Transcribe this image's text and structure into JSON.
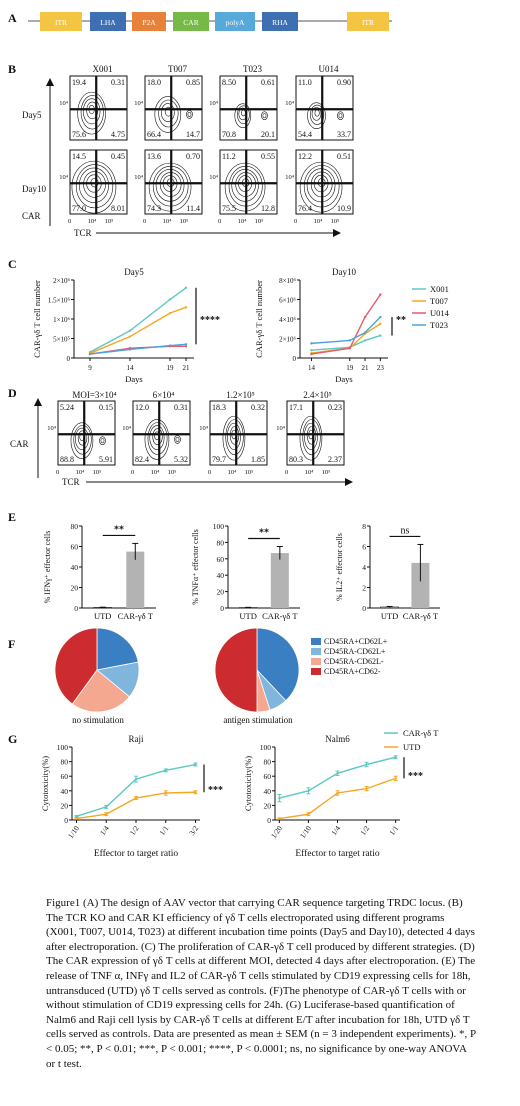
{
  "panels": {
    "A": "A",
    "B": "B",
    "C": "C",
    "D": "D",
    "E": "E",
    "F": "F",
    "G": "G"
  },
  "vector": {
    "segments": [
      {
        "label": "ITR",
        "color": "#f4c542"
      },
      {
        "label": "LHA",
        "color": "#3f6fb3"
      },
      {
        "label": "P2A",
        "color": "#e8823a"
      },
      {
        "label": "CAR",
        "color": "#76b947"
      },
      {
        "label": "polyA",
        "color": "#57a9d9"
      },
      {
        "label": "RHA",
        "color": "#3f6fb3"
      },
      {
        "label": "ITR",
        "color": "#f4c542"
      }
    ]
  },
  "panelB": {
    "columns": [
      "X001",
      "T007",
      "T023",
      "U014"
    ],
    "rows": [
      {
        "label": "Day5",
        "quadrants": [
          [
            "19.4",
            "0.31",
            "75.6",
            "4.75"
          ],
          [
            "18.0",
            "0.85",
            "66.4",
            "14.7"
          ],
          [
            "8.50",
            "0.61",
            "70.8",
            "20.1"
          ],
          [
            "11.0",
            "0.90",
            "54.4",
            "33.7"
          ]
        ]
      },
      {
        "label": "Day10",
        "quadrants": [
          [
            "14.5",
            "0.45",
            "77.0",
            "8.01"
          ],
          [
            "13.6",
            "0.70",
            "74.3",
            "11.4"
          ],
          [
            "11.2",
            "0.55",
            "75.5",
            "12.8"
          ],
          [
            "12.2",
            "0.51",
            "76.4",
            "10.9"
          ]
        ]
      }
    ],
    "y_tick": "10⁴",
    "x_ticks": [
      "0",
      "10⁴",
      "10⁵"
    ],
    "y_axis": "CAR",
    "x_axis": "TCR"
  },
  "chart_data": [
    {
      "type": "line",
      "title": "Day5",
      "ylabel": "CAR-γδ T cell number",
      "xlabel": "Days",
      "x": [
        9,
        14,
        19,
        21
      ],
      "ylim": [
        0,
        2000000
      ],
      "yticks": [
        "0",
        "5×10⁵",
        "1×10⁶",
        "1.5×10⁶",
        "2×10⁶"
      ],
      "significance": "****",
      "series": [
        {
          "name": "X001",
          "color": "#5ec7c2",
          "values": [
            150000,
            700000,
            1500000,
            1800000
          ]
        },
        {
          "name": "T007",
          "color": "#f5a623",
          "values": [
            120000,
            550000,
            1150000,
            1300000
          ]
        },
        {
          "name": "U014",
          "color": "#e8596d",
          "values": [
            100000,
            250000,
            300000,
            300000
          ]
        },
        {
          "name": "T023",
          "color": "#4aa3df",
          "values": [
            100000,
            220000,
            320000,
            350000
          ]
        }
      ]
    },
    {
      "type": "line",
      "title": "Day10",
      "ylabel": "CAR-γδ T cell number",
      "xlabel": "Days",
      "x": [
        14,
        19,
        21,
        23
      ],
      "ylim": [
        0,
        8000000
      ],
      "yticks": [
        "0",
        "2×10⁶",
        "4×10⁶",
        "6×10⁶",
        "8×10⁶"
      ],
      "significance": "**",
      "legend": [
        "X001",
        "T007",
        "U014",
        "T023"
      ],
      "series": [
        {
          "name": "X001",
          "color": "#5ec7c2",
          "values": [
            800000,
            1100000,
            1800000,
            2300000
          ]
        },
        {
          "name": "T007",
          "color": "#f5a623",
          "values": [
            500000,
            1000000,
            2500000,
            3500000
          ]
        },
        {
          "name": "U014",
          "color": "#e8596d",
          "values": [
            400000,
            1000000,
            4200000,
            6500000
          ]
        },
        {
          "name": "T023",
          "color": "#4aa3df",
          "values": [
            1500000,
            1800000,
            2600000,
            4200000
          ]
        }
      ]
    },
    {
      "type": "bar",
      "ylabel": "% IFNγ⁺ effector cells",
      "categories": [
        "UTD",
        "CAR-γδ T"
      ],
      "values": [
        0.5,
        55
      ],
      "errors": [
        0.3,
        8
      ],
      "ylim": [
        0,
        80
      ],
      "yticks": [
        "0",
        "20",
        "40",
        "60",
        "80"
      ],
      "significance": "**"
    },
    {
      "type": "bar",
      "ylabel": "% TNFα⁺ effector cells",
      "categories": [
        "UTD",
        "CAR-γδ T"
      ],
      "values": [
        0.5,
        67
      ],
      "errors": [
        0.3,
        8
      ],
      "ylim": [
        0,
        100
      ],
      "yticks": [
        "0",
        "20",
        "40",
        "60",
        "80",
        "100"
      ],
      "significance": "**"
    },
    {
      "type": "bar",
      "ylabel": "% IL2⁺ effector cells",
      "categories": [
        "UTD",
        "CAR-γδ T"
      ],
      "values": [
        0.1,
        4.4
      ],
      "errors": [
        0.05,
        1.8
      ],
      "ylim": [
        0,
        8
      ],
      "yticks": [
        "0",
        "2",
        "4",
        "6",
        "8"
      ],
      "significance": "ns"
    },
    {
      "type": "pie",
      "label": "no stimulation",
      "categories": [
        "CD45RA+CD62L+",
        "CD45RA-CD62L+",
        "CD45RA-CD62L-",
        "CD45RA+CD62-"
      ],
      "values": [
        22,
        14,
        24,
        40
      ],
      "colors": [
        "#3a7fc1",
        "#80b6dd",
        "#f4a890",
        "#cc2c2f"
      ]
    },
    {
      "type": "pie",
      "label": "antigen stimulation",
      "categories": [
        "CD45RA+CD62L+",
        "CD45RA-CD62L+",
        "CD45RA-CD62L-",
        "CD45RA+CD62-"
      ],
      "values": [
        38,
        7,
        5,
        50
      ],
      "colors": [
        "#3a7fc1",
        "#80b6dd",
        "#f4a890",
        "#cc2c2f"
      ]
    },
    {
      "type": "line",
      "title": "Raji",
      "ylabel": "Cytotoxicity(%)",
      "xlabel": "Effector to target ratio",
      "categories": [
        "1/10",
        "1/4",
        "1/2",
        "1/1",
        "3/2"
      ],
      "ylim": [
        0,
        100
      ],
      "yticks": [
        "0",
        "20",
        "40",
        "60",
        "80",
        "100"
      ],
      "significance": "***",
      "series": [
        {
          "name": "CAR-γδ T",
          "color": "#5ec7c2",
          "values": [
            5,
            18,
            56,
            68,
            76
          ],
          "errors": [
            1,
            2,
            4,
            2,
            2
          ]
        },
        {
          "name": "UTD",
          "color": "#f5a623",
          "values": [
            2,
            8,
            30,
            37,
            38
          ],
          "errors": [
            1,
            2,
            2,
            3,
            2
          ]
        }
      ]
    },
    {
      "type": "line",
      "title": "Nalm6",
      "ylabel": "Cytotoxicity(%)",
      "xlabel": "Effector to target ratio",
      "categories": [
        "1/20",
        "1/10",
        "1/4",
        "1/2",
        "1/1"
      ],
      "ylim": [
        0,
        100
      ],
      "yticks": [
        "0",
        "20",
        "40",
        "60",
        "80",
        "100"
      ],
      "significance": "***",
      "legend": [
        "CAR-γδ T",
        "UTD"
      ],
      "series": [
        {
          "name": "CAR-γδ T",
          "color": "#5ec7c2",
          "values": [
            30,
            40,
            64,
            76,
            86
          ],
          "errors": [
            5,
            4,
            3,
            3,
            2
          ]
        },
        {
          "name": "UTD",
          "color": "#f5a623",
          "values": [
            2,
            8,
            37,
            43,
            57
          ],
          "errors": [
            1,
            2,
            3,
            3,
            3
          ]
        }
      ]
    }
  ],
  "panelD": {
    "columns": [
      "MOI=3×10⁴",
      "6×10⁴",
      "1.2×10⁵",
      "2.4×10⁵"
    ],
    "quadrants": [
      [
        "5.24",
        "0.15",
        "88.8",
        "5.91"
      ],
      [
        "12.0",
        "0.31",
        "82.4",
        "5.32"
      ],
      [
        "18.3",
        "0.32",
        "79.7",
        "1.85"
      ],
      [
        "17.1",
        "0.23",
        "80.3",
        "2.37"
      ]
    ],
    "y_tick": "10⁴",
    "x_ticks": [
      "0",
      "10⁴",
      "10⁵"
    ],
    "y_axis": "CAR",
    "x_axis": "TCR"
  },
  "caption": "Figure1 (A) The design of AAV vector that carrying CAR sequence targeting TRDC locus. (B) The TCR KO and CAR KI efficiency of γδ T cells electroporated using different programs (X001, T007, U014, T023) at different incubation time points (Day5 and Day10), detected 4 days after electroporation. (C) The proliferation of CAR-γδ T cell produced by different strategies. (D) The CAR expression of γδ T cells at different MOI, detected 4 days after electroporation. (E) The release of TNF α, INFγ and IL2 of CAR-γδ T cells stimulated by CD19 expressing cells for 18h, untransduced (UTD) γδ T cells served as controls. (F)The phenotype of CAR-γδ T cells with or without stimulation of CD19 expressing cells for 24h. (G) Luciferase-based quantification of Nalm6 and Raji cell lysis by CAR-γδ T cells at different E/T after incubation for 18h, UTD γδ T cells served as controls. Data are presented as mean ± SEM (n = 3 independent experiments). *, P < 0.05; **, P < 0.01; ***, P < 0.001; ****, P < 0.0001; ns, no significance by one-way ANOVA or t test."
}
